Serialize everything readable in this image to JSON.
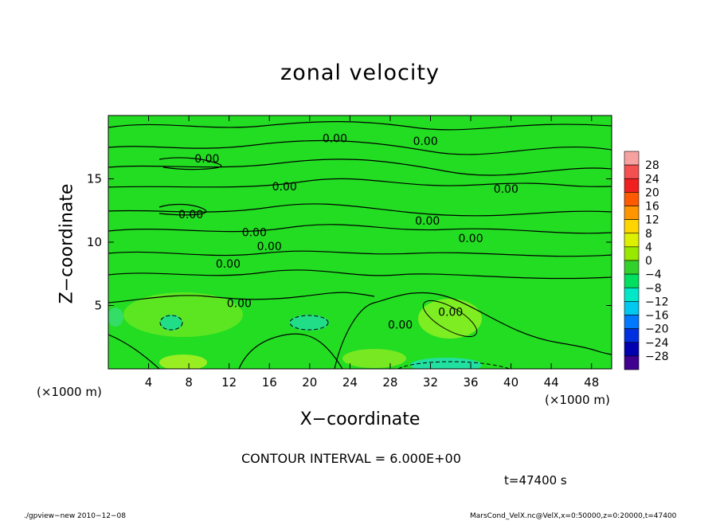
{
  "chart_data": {
    "type": "contour",
    "title": "zonal velocity",
    "xlabel": "X−coordinate",
    "ylabel": "Z−coordinate",
    "x_unit_left": "(×1000 m)",
    "x_unit_right": "(×1000 m)",
    "xlim": [
      0,
      50
    ],
    "ylim": [
      0,
      20
    ],
    "x_ticks": [
      {
        "value": 4,
        "label": "4"
      },
      {
        "value": 8,
        "label": "8"
      },
      {
        "value": 12,
        "label": "12"
      },
      {
        "value": 16,
        "label": "16"
      },
      {
        "value": 20,
        "label": "20"
      },
      {
        "value": 24,
        "label": "24"
      },
      {
        "value": 28,
        "label": "28"
      },
      {
        "value": 32,
        "label": "32"
      },
      {
        "value": 36,
        "label": "36"
      },
      {
        "value": 40,
        "label": "40"
      },
      {
        "value": 44,
        "label": "44"
      },
      {
        "value": 48,
        "label": "48"
      }
    ],
    "y_ticks": [
      {
        "value": 5,
        "label": "5"
      },
      {
        "value": 10,
        "label": "10"
      },
      {
        "value": 15,
        "label": "15"
      }
    ],
    "contour_labels": [
      {
        "x": 22.5,
        "z": 18.2,
        "text": "0.00"
      },
      {
        "x": 31.5,
        "z": 18.0,
        "text": "0.00"
      },
      {
        "x": 9.8,
        "z": 16.6,
        "text": "0.00"
      },
      {
        "x": 17.5,
        "z": 14.4,
        "text": "0.00"
      },
      {
        "x": 39.5,
        "z": 14.2,
        "text": "0.00"
      },
      {
        "x": 8.2,
        "z": 12.2,
        "text": "0.00"
      },
      {
        "x": 31.7,
        "z": 11.7,
        "text": "0.00"
      },
      {
        "x": 14.5,
        "z": 10.8,
        "text": "0.00"
      },
      {
        "x": 36.0,
        "z": 10.3,
        "text": "0.00"
      },
      {
        "x": 16.0,
        "z": 9.7,
        "text": "0.00"
      },
      {
        "x": 11.9,
        "z": 8.3,
        "text": "0.00"
      },
      {
        "x": 13.0,
        "z": 5.2,
        "text": "0.00"
      },
      {
        "x": 34.0,
        "z": 4.5,
        "text": "0.00"
      },
      {
        "x": 29.0,
        "z": 3.5,
        "text": "0.00"
      }
    ],
    "colorbar": {
      "levels": [
        "28",
        "24",
        "20",
        "16",
        "12",
        "8",
        "4",
        "0",
        "−4",
        "−8",
        "−12",
        "−16",
        "−20",
        "−24",
        "−28"
      ],
      "colors": [
        "#f7a1a1",
        "#f55050",
        "#f02020",
        "#ff5a00",
        "#ff9600",
        "#ffd500",
        "#dcf000",
        "#99e800",
        "#33d12c",
        "#00e060",
        "#00e8c8",
        "#00c8f0",
        "#0078ff",
        "#0030e0",
        "#0000b0",
        "#400090"
      ]
    },
    "field_main_color": "#22dd22",
    "field_warm_color": "#88ee22",
    "field_cool_color": "#22dd88"
  },
  "contour_interval": "CONTOUR INTERVAL = 6.000E+00",
  "time_label": "t=47400 s",
  "footer_left": "./gpview−new  2010−12−08",
  "footer_right": "MarsCond_VelX.nc@VelX,x=0:50000,z=0:20000,t=47400"
}
